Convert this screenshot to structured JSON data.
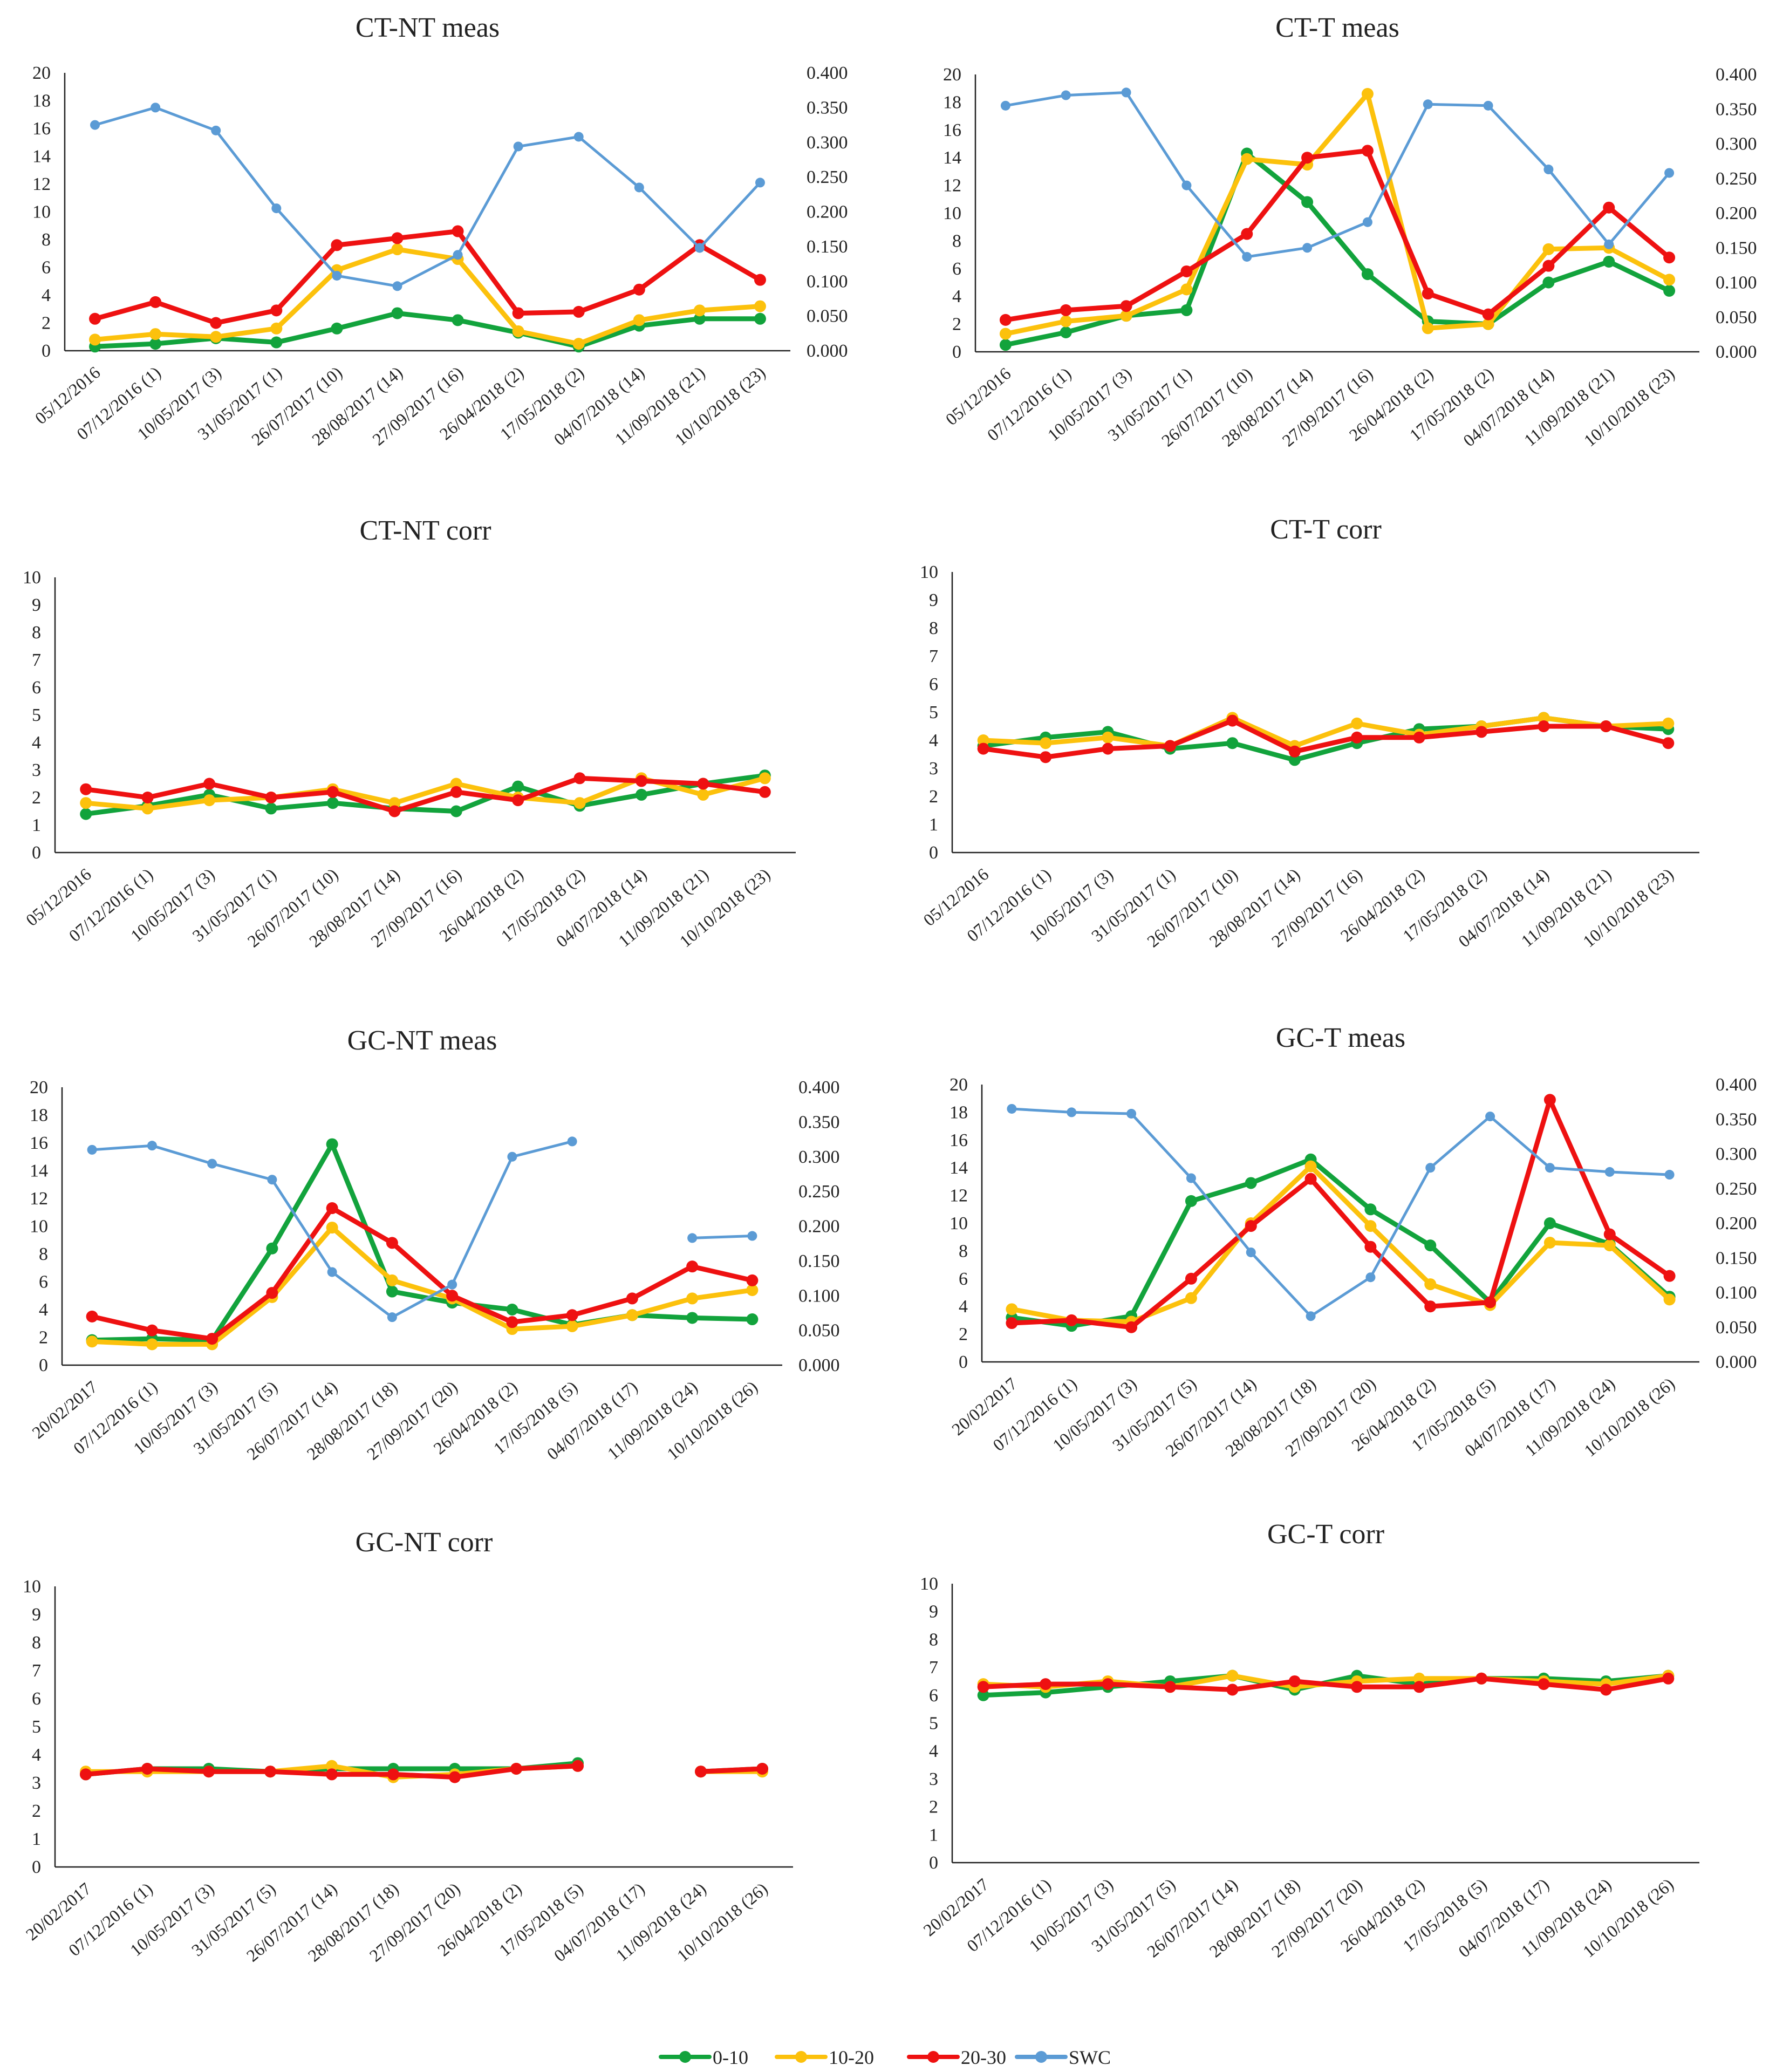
{
  "legend": [
    {
      "name": "0-10",
      "color": "#12a33c"
    },
    {
      "name": "10-20",
      "color": "#fcc10c"
    },
    {
      "name": "20-30",
      "color": "#ee1111"
    },
    {
      "name": "SWC",
      "color": "#5b9bd5"
    }
  ],
  "chart_data": [
    {
      "type": "line",
      "title": "CT-NT meas",
      "position": "row1-left",
      "categories": [
        "05/12/2016",
        "07/12/2016 (1)",
        "10/05/2017 (3)",
        "31/05/2017 (1)",
        "26/07/2017 (10)",
        "28/08/2017 (14)",
        "27/09/2017 (16)",
        "26/04/2018 (2)",
        "17/05/2018 (2)",
        "04/07/2018 (14)",
        "11/09/2018 (21)",
        "10/10/2018 (23)"
      ],
      "ylim": [
        0,
        20
      ],
      "y_ticks": [
        "0",
        "2",
        "4",
        "6",
        "8",
        "10",
        "12",
        "14",
        "16",
        "18",
        "20"
      ],
      "y2lim": [
        0,
        0.4
      ],
      "y2_ticks": [
        "0.000",
        "0.050",
        "0.100",
        "0.150",
        "0.200",
        "0.250",
        "0.300",
        "0.350",
        "0.400"
      ],
      "series": [
        {
          "name": "0-10",
          "color": "#12a33c",
          "values": [
            0.3,
            0.5,
            0.9,
            0.6,
            1.6,
            2.7,
            2.2,
            1.3,
            0.3,
            1.8,
            2.3,
            2.3
          ]
        },
        {
          "name": "10-20",
          "color": "#fcc10c",
          "values": [
            0.8,
            1.2,
            1.0,
            1.6,
            5.8,
            7.3,
            6.6,
            1.4,
            0.5,
            2.2,
            2.9,
            3.2
          ]
        },
        {
          "name": "20-30",
          "color": "#ee1111",
          "values": [
            2.3,
            3.5,
            2.0,
            2.9,
            7.6,
            8.1,
            8.6,
            2.7,
            2.8,
            4.4,
            7.6,
            5.1
          ]
        },
        {
          "name": "SWC",
          "color": "#5b9bd5",
          "axis": "right",
          "values": [
            0.325,
            0.35,
            0.317,
            0.205,
            0.108,
            0.093,
            0.138,
            0.294,
            0.308,
            0.235,
            0.148,
            0.242
          ]
        }
      ]
    },
    {
      "type": "line",
      "title": "CT-T meas",
      "position": "row1-right",
      "categories": [
        "05/12/2016",
        "07/12/2016 (1)",
        "10/05/2017 (3)",
        "31/05/2017 (1)",
        "26/07/2017 (10)",
        "28/08/2017 (14)",
        "27/09/2017 (16)",
        "26/04/2018 (2)",
        "17/05/2018 (2)",
        "04/07/2018 (14)",
        "11/09/2018 (21)",
        "10/10/2018 (23)"
      ],
      "ylim": [
        0,
        20
      ],
      "y_ticks": [
        "0",
        "2",
        "4",
        "6",
        "8",
        "10",
        "12",
        "14",
        "16",
        "18",
        "20"
      ],
      "y2lim": [
        0,
        0.4
      ],
      "y2_ticks": [
        "0.000",
        "0.050",
        "0.100",
        "0.150",
        "0.200",
        "0.250",
        "0.300",
        "0.350",
        "0.400"
      ],
      "series": [
        {
          "name": "0-10",
          "color": "#12a33c",
          "values": [
            0.5,
            1.4,
            2.6,
            3.0,
            14.3,
            10.8,
            5.6,
            2.2,
            2.0,
            5.0,
            6.5,
            4.4
          ]
        },
        {
          "name": "10-20",
          "color": "#fcc10c",
          "values": [
            1.3,
            2.2,
            2.6,
            4.5,
            13.9,
            13.5,
            18.6,
            1.7,
            2.0,
            7.4,
            7.5,
            5.2
          ]
        },
        {
          "name": "20-30",
          "color": "#ee1111",
          "values": [
            2.3,
            3.0,
            3.3,
            5.8,
            8.5,
            14.0,
            14.5,
            4.2,
            2.7,
            6.2,
            10.4,
            6.8
          ]
        },
        {
          "name": "SWC",
          "color": "#5b9bd5",
          "axis": "right",
          "values": [
            0.355,
            0.37,
            0.374,
            0.24,
            0.137,
            0.15,
            0.187,
            0.357,
            0.355,
            0.263,
            0.155,
            0.258
          ]
        }
      ]
    },
    {
      "type": "line",
      "title": "CT-NT corr",
      "position": "row2-left",
      "categories": [
        "05/12/2016",
        "07/12/2016 (1)",
        "10/05/2017 (3)",
        "31/05/2017 (1)",
        "26/07/2017 (10)",
        "28/08/2017 (14)",
        "27/09/2017 (16)",
        "26/04/2018 (2)",
        "17/05/2018 (2)",
        "04/07/2018 (14)",
        "11/09/2018 (21)",
        "10/10/2018 (23)"
      ],
      "ylim": [
        0,
        10
      ],
      "y_ticks": [
        "0",
        "1",
        "2",
        "3",
        "4",
        "5",
        "6",
        "7",
        "8",
        "9",
        "10"
      ],
      "series": [
        {
          "name": "0-10",
          "color": "#12a33c",
          "values": [
            1.4,
            1.7,
            2.1,
            1.6,
            1.8,
            1.6,
            1.5,
            2.4,
            1.7,
            2.1,
            2.5,
            2.8
          ]
        },
        {
          "name": "10-20",
          "color": "#fcc10c",
          "values": [
            1.8,
            1.6,
            1.9,
            2.0,
            2.3,
            1.8,
            2.5,
            2.0,
            1.8,
            2.7,
            2.1,
            2.7
          ]
        },
        {
          "name": "20-30",
          "color": "#ee1111",
          "values": [
            2.3,
            2.0,
            2.5,
            2.0,
            2.2,
            1.5,
            2.2,
            1.9,
            2.7,
            2.6,
            2.5,
            2.2
          ]
        }
      ]
    },
    {
      "type": "line",
      "title": "CT-T corr",
      "position": "row2-right",
      "categories": [
        "05/12/2016",
        "07/12/2016 (1)",
        "10/05/2017 (3)",
        "31/05/2017 (1)",
        "26/07/2017 (10)",
        "28/08/2017 (14)",
        "27/09/2017 (16)",
        "26/04/2018 (2)",
        "17/05/2018 (2)",
        "04/07/2018 (14)",
        "11/09/2018 (21)",
        "10/10/2018 (23)"
      ],
      "ylim": [
        0,
        10
      ],
      "y_ticks": [
        "0",
        "1",
        "2",
        "3",
        "4",
        "5",
        "6",
        "7",
        "8",
        "9",
        "10"
      ],
      "series": [
        {
          "name": "0-10",
          "color": "#12a33c",
          "values": [
            3.8,
            4.1,
            4.3,
            3.7,
            3.9,
            3.3,
            3.9,
            4.4,
            4.5,
            4.8,
            4.5,
            4.4
          ]
        },
        {
          "name": "10-20",
          "color": "#fcc10c",
          "values": [
            4.0,
            3.9,
            4.1,
            3.8,
            4.8,
            3.8,
            4.6,
            4.2,
            4.5,
            4.8,
            4.5,
            4.6
          ]
        },
        {
          "name": "20-30",
          "color": "#ee1111",
          "values": [
            3.7,
            3.4,
            3.7,
            3.8,
            4.7,
            3.6,
            4.1,
            4.1,
            4.3,
            4.5,
            4.5,
            3.9
          ]
        }
      ]
    },
    {
      "type": "line",
      "title": "GC-NT meas",
      "position": "row3-left",
      "categories": [
        "20/02/2017",
        "07/12/2016 (1)",
        "10/05/2017 (3)",
        "31/05/2017 (5)",
        "26/07/2017 (14)",
        "28/08/2017 (18)",
        "27/09/2017 (20)",
        "26/04/2018 (2)",
        "17/05/2018 (5)",
        "04/07/2018 (17)",
        "11/09/2018 (24)",
        "10/10/2018 (26)"
      ],
      "ylim": [
        0,
        20
      ],
      "y_ticks": [
        "0",
        "2",
        "4",
        "6",
        "8",
        "10",
        "12",
        "14",
        "16",
        "18",
        "20"
      ],
      "y2lim": [
        0,
        0.4
      ],
      "y2_ticks": [
        "0.000",
        "0.050",
        "0.100",
        "0.150",
        "0.200",
        "0.250",
        "0.300",
        "0.350",
        "0.400"
      ],
      "series": [
        {
          "name": "0-10",
          "color": "#12a33c",
          "values": [
            1.8,
            1.9,
            1.8,
            8.4,
            15.9,
            5.3,
            4.5,
            4.0,
            2.9,
            3.6,
            3.4,
            3.3
          ]
        },
        {
          "name": "10-20",
          "color": "#fcc10c",
          "values": [
            1.7,
            1.5,
            1.5,
            4.9,
            9.9,
            6.1,
            4.8,
            2.6,
            2.8,
            3.6,
            4.8,
            5.4
          ]
        },
        {
          "name": "20-30",
          "color": "#ee1111",
          "values": [
            3.5,
            2.5,
            1.9,
            5.2,
            11.3,
            8.8,
            5.0,
            3.1,
            3.6,
            4.8,
            7.1,
            6.1
          ]
        },
        {
          "name": "SWC",
          "color": "#5b9bd5",
          "axis": "right",
          "values": [
            0.31,
            0.316,
            0.29,
            0.267,
            0.134,
            0.069,
            0.116,
            0.3,
            0.322,
            null,
            0.183,
            0.186
          ]
        }
      ]
    },
    {
      "type": "line",
      "title": "GC-T meas",
      "position": "row3-right",
      "categories": [
        "20/02/2017",
        "07/12/2016 (1)",
        "10/05/2017 (3)",
        "31/05/2017 (5)",
        "26/07/2017 (14)",
        "28/08/2017 (18)",
        "27/09/2017 (20)",
        "26/04/2018 (2)",
        "17/05/2018 (5)",
        "04/07/2018 (17)",
        "11/09/2018 (24)",
        "10/10/2018 (26)"
      ],
      "ylim": [
        0,
        20
      ],
      "y_ticks": [
        "0",
        "2",
        "4",
        "6",
        "8",
        "10",
        "12",
        "14",
        "16",
        "18",
        "20"
      ],
      "y2lim": [
        0,
        0.4
      ],
      "y2_ticks": [
        "0.000",
        "0.050",
        "0.100",
        "0.150",
        "0.200",
        "0.250",
        "0.300",
        "0.350",
        "0.400"
      ],
      "series": [
        {
          "name": "0-10",
          "color": "#12a33c",
          "values": [
            3.2,
            2.6,
            3.3,
            11.6,
            12.9,
            14.6,
            11.0,
            8.4,
            4.3,
            10.0,
            8.5,
            4.7
          ]
        },
        {
          "name": "10-20",
          "color": "#fcc10c",
          "values": [
            3.8,
            3.0,
            2.9,
            4.6,
            10.0,
            14.1,
            9.8,
            5.6,
            4.1,
            8.6,
            8.4,
            4.5
          ]
        },
        {
          "name": "20-30",
          "color": "#ee1111",
          "values": [
            2.8,
            3.0,
            2.5,
            6.0,
            9.8,
            13.2,
            8.3,
            4.0,
            4.3,
            18.9,
            9.2,
            6.2
          ]
        },
        {
          "name": "SWC",
          "color": "#5b9bd5",
          "axis": "right",
          "values": [
            0.365,
            0.36,
            0.358,
            0.265,
            0.158,
            0.066,
            0.122,
            0.28,
            0.354,
            0.28,
            0.274,
            0.27
          ]
        }
      ]
    },
    {
      "type": "line",
      "title": "GC-NT corr",
      "position": "row4-left",
      "categories": [
        "20/02/2017",
        "07/12/2016 (1)",
        "10/05/2017 (3)",
        "31/05/2017 (5)",
        "26/07/2017 (14)",
        "28/08/2017 (18)",
        "27/09/2017 (20)",
        "26/04/2018 (2)",
        "17/05/2018 (5)",
        "04/07/2018 (17)",
        "11/09/2018 (24)",
        "10/10/2018 (26)"
      ],
      "ylim": [
        0,
        10
      ],
      "y_ticks": [
        "0",
        "1",
        "2",
        "3",
        "4",
        "5",
        "6",
        "7",
        "8",
        "9",
        "10"
      ],
      "series": [
        {
          "name": "0-10",
          "color": "#12a33c",
          "values": [
            3.3,
            3.5,
            3.5,
            3.4,
            3.5,
            3.5,
            3.5,
            3.5,
            3.7,
            null,
            3.4,
            3.5
          ]
        },
        {
          "name": "10-20",
          "color": "#fcc10c",
          "values": [
            3.4,
            3.4,
            3.4,
            3.4,
            3.6,
            3.2,
            3.3,
            3.5,
            3.6,
            null,
            3.4,
            3.4
          ]
        },
        {
          "name": "20-30",
          "color": "#ee1111",
          "values": [
            3.3,
            3.5,
            3.4,
            3.4,
            3.3,
            3.3,
            3.2,
            3.5,
            3.6,
            null,
            3.4,
            3.5
          ]
        }
      ]
    },
    {
      "type": "line",
      "title": "GC-T corr",
      "position": "row4-right",
      "categories": [
        "20/02/2017",
        "07/12/2016 (1)",
        "10/05/2017 (3)",
        "31/05/2017 (5)",
        "26/07/2017 (14)",
        "28/08/2017 (18)",
        "27/09/2017 (20)",
        "26/04/2018 (2)",
        "17/05/2018 (5)",
        "04/07/2018 (17)",
        "11/09/2018 (24)",
        "10/10/2018 (26)"
      ],
      "ylim": [
        0,
        10
      ],
      "y_ticks": [
        "0",
        "1",
        "2",
        "3",
        "4",
        "5",
        "6",
        "7",
        "8",
        "9",
        "10"
      ],
      "series": [
        {
          "name": "0-10",
          "color": "#12a33c",
          "values": [
            6.0,
            6.1,
            6.3,
            6.5,
            6.7,
            6.2,
            6.7,
            6.4,
            6.6,
            6.6,
            6.5,
            6.7
          ]
        },
        {
          "name": "10-20",
          "color": "#fcc10c",
          "values": [
            6.4,
            6.3,
            6.5,
            6.3,
            6.7,
            6.3,
            6.5,
            6.6,
            6.6,
            6.5,
            6.4,
            6.7
          ]
        },
        {
          "name": "20-30",
          "color": "#ee1111",
          "values": [
            6.3,
            6.4,
            6.4,
            6.3,
            6.2,
            6.5,
            6.3,
            6.3,
            6.6,
            6.4,
            6.2,
            6.6
          ]
        }
      ]
    }
  ]
}
